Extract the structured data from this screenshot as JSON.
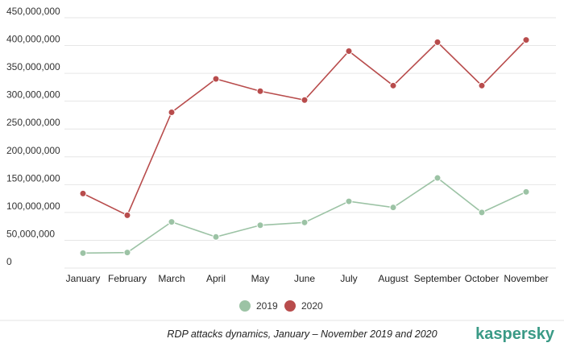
{
  "chart_data": {
    "type": "line",
    "categories": [
      "January",
      "February",
      "March",
      "April",
      "May",
      "June",
      "July",
      "August",
      "September",
      "October",
      "November"
    ],
    "series": [
      {
        "name": "2019",
        "color": "#9cc3a5",
        "values": [
          27000000,
          28000000,
          83000000,
          56000000,
          77000000,
          82000000,
          120000000,
          109000000,
          162000000,
          100000000,
          137000000
        ]
      },
      {
        "name": "2020",
        "color": "#b84c4c",
        "values": [
          134000000,
          95000000,
          280000000,
          340000000,
          318000000,
          302000000,
          390000000,
          328000000,
          406000000,
          328000000,
          410000000
        ]
      }
    ],
    "ylim": [
      0,
      450000000
    ],
    "yticks": [
      "0",
      "50,000,000",
      "100,000,000",
      "150,000,000",
      "200,000,000",
      "250,000,000",
      "300,000,000",
      "350,000,000",
      "400,000,000",
      "450,000,000"
    ],
    "grid": true,
    "legend_position": "bottom-center",
    "caption": "RDP attacks dynamics, January – November 2019 and 2020"
  },
  "branding": {
    "logo_text": "kaspersky",
    "logo_color": "#3a9a86"
  }
}
